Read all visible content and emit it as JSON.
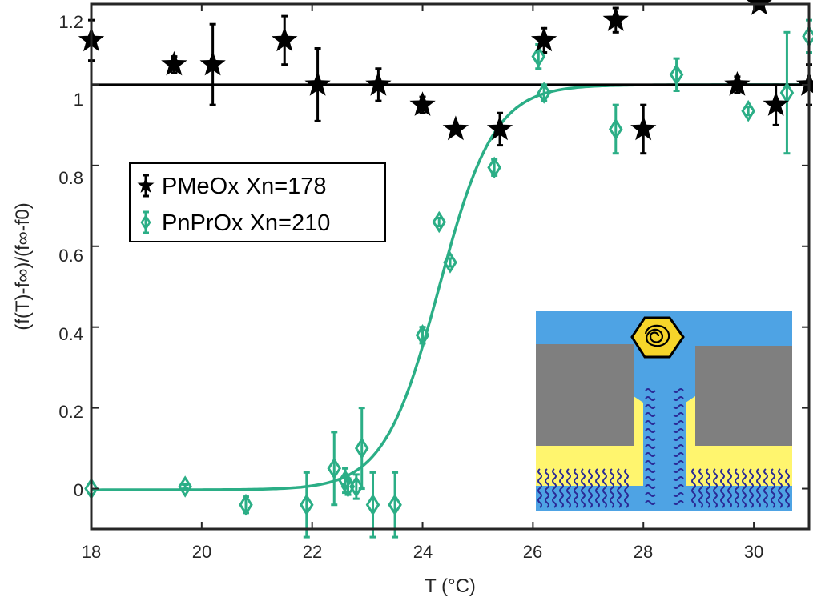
{
  "chart_data": {
    "type": "scatter",
    "xlabel": "T (°C)",
    "ylabel": "(f(T)-f∞)/(f∞-f0)",
    "xlim": [
      18,
      31
    ],
    "ylim": [
      -0.1,
      1.2
    ],
    "x_ticks": [
      "18",
      "20",
      "22",
      "24",
      "26",
      "28",
      "30"
    ],
    "y_ticks": [
      "0",
      "0.2",
      "0.4",
      "0.6",
      "0.8",
      "1",
      "1.2"
    ],
    "grid": false,
    "legend_position": "middle-left",
    "reference_line": {
      "y": 1,
      "color": "#000000"
    },
    "series": [
      {
        "name": "PMeOx Xn=178",
        "color": "#000000",
        "marker": "star",
        "points": [
          {
            "x": 18.0,
            "y": 1.11,
            "err": 0.05
          },
          {
            "x": 19.5,
            "y": 1.05,
            "err": 0.02
          },
          {
            "x": 20.2,
            "y": 1.05,
            "err": 0.1
          },
          {
            "x": 21.5,
            "y": 1.11,
            "err": 0.06
          },
          {
            "x": 22.1,
            "y": 1.0,
            "err": 0.09
          },
          {
            "x": 23.2,
            "y": 1.0,
            "err": 0.04
          },
          {
            "x": 24.0,
            "y": 0.95,
            "err": 0.02
          },
          {
            "x": 24.6,
            "y": 0.89,
            "err": 0.01
          },
          {
            "x": 25.4,
            "y": 0.89,
            "err": 0.04
          },
          {
            "x": 26.2,
            "y": 1.11,
            "err": 0.03
          },
          {
            "x": 27.5,
            "y": 1.16,
            "err": 0.03
          },
          {
            "x": 28.0,
            "y": 0.89,
            "err": 0.06
          },
          {
            "x": 29.7,
            "y": 1.0,
            "err": 0.02
          },
          {
            "x": 30.1,
            "y": 1.2,
            "err": 0.01
          },
          {
            "x": 30.4,
            "y": 0.95,
            "err": 0.05
          },
          {
            "x": 31.0,
            "y": 1.0,
            "err": 0.05
          }
        ]
      },
      {
        "name": "PnPrOx Xn=210",
        "color": "#2bae86",
        "marker": "diamond",
        "fit": {
          "type": "sigmoid",
          "x0": 24.3,
          "width": 0.5,
          "low": -0.003,
          "high": 1.0
        },
        "points": [
          {
            "x": 18.0,
            "y": 0.0,
            "err": 0.0
          },
          {
            "x": 19.7,
            "y": 0.005,
            "err": 0.005
          },
          {
            "x": 20.8,
            "y": -0.04,
            "err": 0.02
          },
          {
            "x": 21.9,
            "y": -0.04,
            "err": 0.08
          },
          {
            "x": 22.4,
            "y": 0.05,
            "err": 0.09
          },
          {
            "x": 22.6,
            "y": 0.02,
            "err": 0.03
          },
          {
            "x": 22.65,
            "y": 0.005,
            "err": 0.02
          },
          {
            "x": 22.8,
            "y": 0.005,
            "err": 0.03
          },
          {
            "x": 22.9,
            "y": 0.1,
            "err": 0.1
          },
          {
            "x": 23.1,
            "y": -0.04,
            "err": 0.08
          },
          {
            "x": 23.5,
            "y": -0.04,
            "err": 0.08
          },
          {
            "x": 24.0,
            "y": 0.38,
            "err": 0.02
          },
          {
            "x": 24.3,
            "y": 0.66,
            "err": 0.01
          },
          {
            "x": 24.5,
            "y": 0.56,
            "err": 0.01
          },
          {
            "x": 25.3,
            "y": 0.795,
            "err": 0.02
          },
          {
            "x": 26.1,
            "y": 1.07,
            "err": 0.03
          },
          {
            "x": 26.2,
            "y": 0.98,
            "err": 0.02
          },
          {
            "x": 27.5,
            "y": 0.89,
            "err": 0.06
          },
          {
            "x": 28.6,
            "y": 1.025,
            "err": 0.04
          },
          {
            "x": 29.9,
            "y": 0.935,
            "err": 0.01
          },
          {
            "x": 30.6,
            "y": 0.98,
            "err": 0.15
          },
          {
            "x": 31.0,
            "y": 1.12,
            "err": 0.04
          }
        ]
      }
    ]
  },
  "inset": {
    "colors": {
      "water": "#4ea3e4",
      "wall": "#7f7f7f",
      "gold": "#fff56e",
      "brush": "#2a2a96",
      "hexagon": "#f6d52a"
    }
  }
}
